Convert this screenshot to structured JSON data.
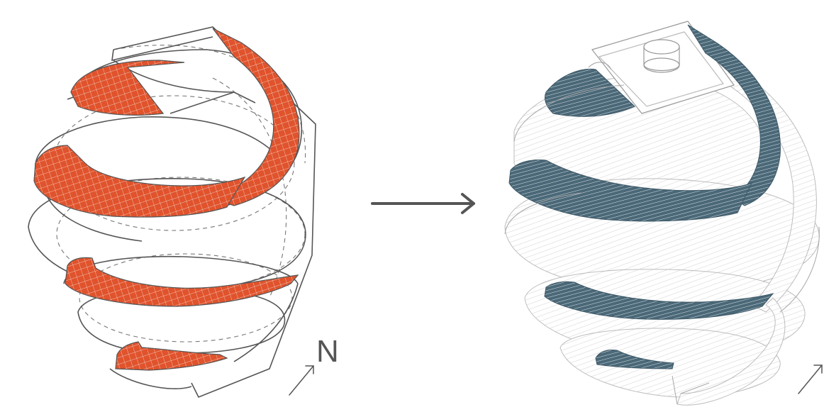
{
  "diagram": {
    "north_label": "N",
    "colors": {
      "left_fill": "#e0532c",
      "left_fill_grid": "#ffffff",
      "left_outline": "#555555",
      "right_fill": "#4a6878",
      "right_lines": "#c8c8c8",
      "arrow": "#555555"
    },
    "icons": [
      "transform-arrow-icon",
      "north-arrow-icon"
    ]
  }
}
